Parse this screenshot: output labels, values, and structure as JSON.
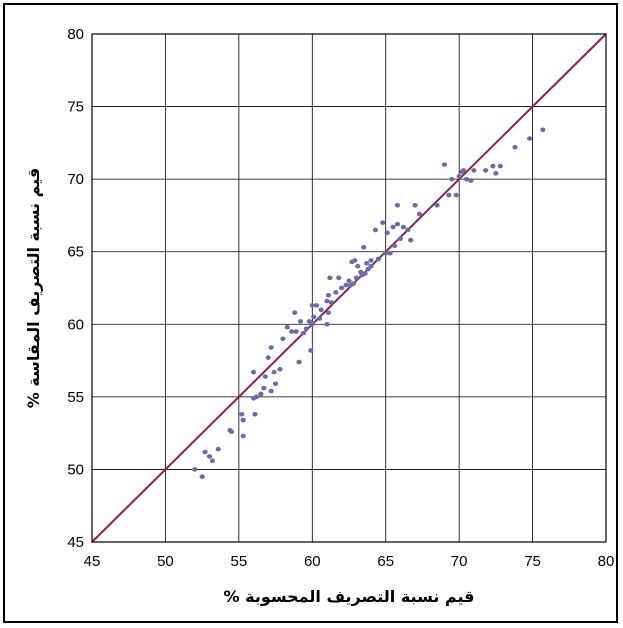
{
  "chart_data": {
    "type": "scatter",
    "title": "",
    "xlabel": "قيم نسبة التصريف المحسوبة %",
    "ylabel": "قيم نسبة التصريف المقاسة %",
    "xlim": [
      45,
      80
    ],
    "ylim": [
      45,
      80
    ],
    "xticks": [
      45,
      50,
      55,
      60,
      65,
      70,
      75,
      80
    ],
    "yticks": [
      45,
      50,
      55,
      60,
      65,
      70,
      75,
      80
    ],
    "grid": true,
    "legend": "none",
    "colors": {
      "points": "#6b6ba8",
      "line": "#8e1f4f",
      "grid": "#000000"
    },
    "reference_line": {
      "x": [
        45,
        80
      ],
      "y": [
        45,
        80
      ]
    },
    "points": [
      [
        52.0,
        50.0
      ],
      [
        52.5,
        49.5
      ],
      [
        52.7,
        51.2
      ],
      [
        53.0,
        50.9
      ],
      [
        53.2,
        50.6
      ],
      [
        53.6,
        51.4
      ],
      [
        54.4,
        52.7
      ],
      [
        54.5,
        52.6
      ],
      [
        55.2,
        53.8
      ],
      [
        55.3,
        52.3
      ],
      [
        55.3,
        53.4
      ],
      [
        56.0,
        54.9
      ],
      [
        56.0,
        56.7
      ],
      [
        56.1,
        53.8
      ],
      [
        56.2,
        55.0
      ],
      [
        56.5,
        55.2
      ],
      [
        56.7,
        55.6
      ],
      [
        56.8,
        56.4
      ],
      [
        57.0,
        57.7
      ],
      [
        57.2,
        58.4
      ],
      [
        57.2,
        55.4
      ],
      [
        57.4,
        56.7
      ],
      [
        57.5,
        55.9
      ],
      [
        57.8,
        56.9
      ],
      [
        58.0,
        59.0
      ],
      [
        58.3,
        59.8
      ],
      [
        58.6,
        59.5
      ],
      [
        58.8,
        60.8
      ],
      [
        58.9,
        59.5
      ],
      [
        59.1,
        57.4
      ],
      [
        59.2,
        60.2
      ],
      [
        59.4,
        59.4
      ],
      [
        59.6,
        59.7
      ],
      [
        59.8,
        60.2
      ],
      [
        59.9,
        58.2
      ],
      [
        60.0,
        60.0
      ],
      [
        60.0,
        61.3
      ],
      [
        60.1,
        60.5
      ],
      [
        60.3,
        61.3
      ],
      [
        60.5,
        60.4
      ],
      [
        60.6,
        61.0
      ],
      [
        61.0,
        61.6
      ],
      [
        61.0,
        60.0
      ],
      [
        61.1,
        62.0
      ],
      [
        61.1,
        60.8
      ],
      [
        61.2,
        63.2
      ],
      [
        61.3,
        61.5
      ],
      [
        61.6,
        62.2
      ],
      [
        61.8,
        63.2
      ],
      [
        62.0,
        62.5
      ],
      [
        62.3,
        62.7
      ],
      [
        62.5,
        63.0
      ],
      [
        62.6,
        62.7
      ],
      [
        62.7,
        64.3
      ],
      [
        62.8,
        62.8
      ],
      [
        62.9,
        64.4
      ],
      [
        63.0,
        63.2
      ],
      [
        63.1,
        64.0
      ],
      [
        63.3,
        63.6
      ],
      [
        63.4,
        63.4
      ],
      [
        63.5,
        65.3
      ],
      [
        63.6,
        63.5
      ],
      [
        63.7,
        64.2
      ],
      [
        63.8,
        63.8
      ],
      [
        64.0,
        64.4
      ],
      [
        64.0,
        64.0
      ],
      [
        64.3,
        66.5
      ],
      [
        64.5,
        64.5
      ],
      [
        64.8,
        67.0
      ],
      [
        65.0,
        64.9
      ],
      [
        65.1,
        66.3
      ],
      [
        65.3,
        64.9
      ],
      [
        65.5,
        66.7
      ],
      [
        65.6,
        65.4
      ],
      [
        65.8,
        68.2
      ],
      [
        65.8,
        66.9
      ],
      [
        66.0,
        65.9
      ],
      [
        66.2,
        66.7
      ],
      [
        66.5,
        66.5
      ],
      [
        66.7,
        65.8
      ],
      [
        67.0,
        68.2
      ],
      [
        67.3,
        67.6
      ],
      [
        68.5,
        68.2
      ],
      [
        69.0,
        71.0
      ],
      [
        69.3,
        68.9
      ],
      [
        69.5,
        70.0
      ],
      [
        69.8,
        68.9
      ],
      [
        70.0,
        70.2
      ],
      [
        70.2,
        70.5
      ],
      [
        70.3,
        70.6
      ],
      [
        70.5,
        70.0
      ],
      [
        70.8,
        69.9
      ],
      [
        71.0,
        70.6
      ],
      [
        71.8,
        70.6
      ],
      [
        72.3,
        70.9
      ],
      [
        72.5,
        70.4
      ],
      [
        72.8,
        70.9
      ],
      [
        73.8,
        72.2
      ],
      [
        74.8,
        72.8
      ],
      [
        75.7,
        73.4
      ]
    ]
  }
}
